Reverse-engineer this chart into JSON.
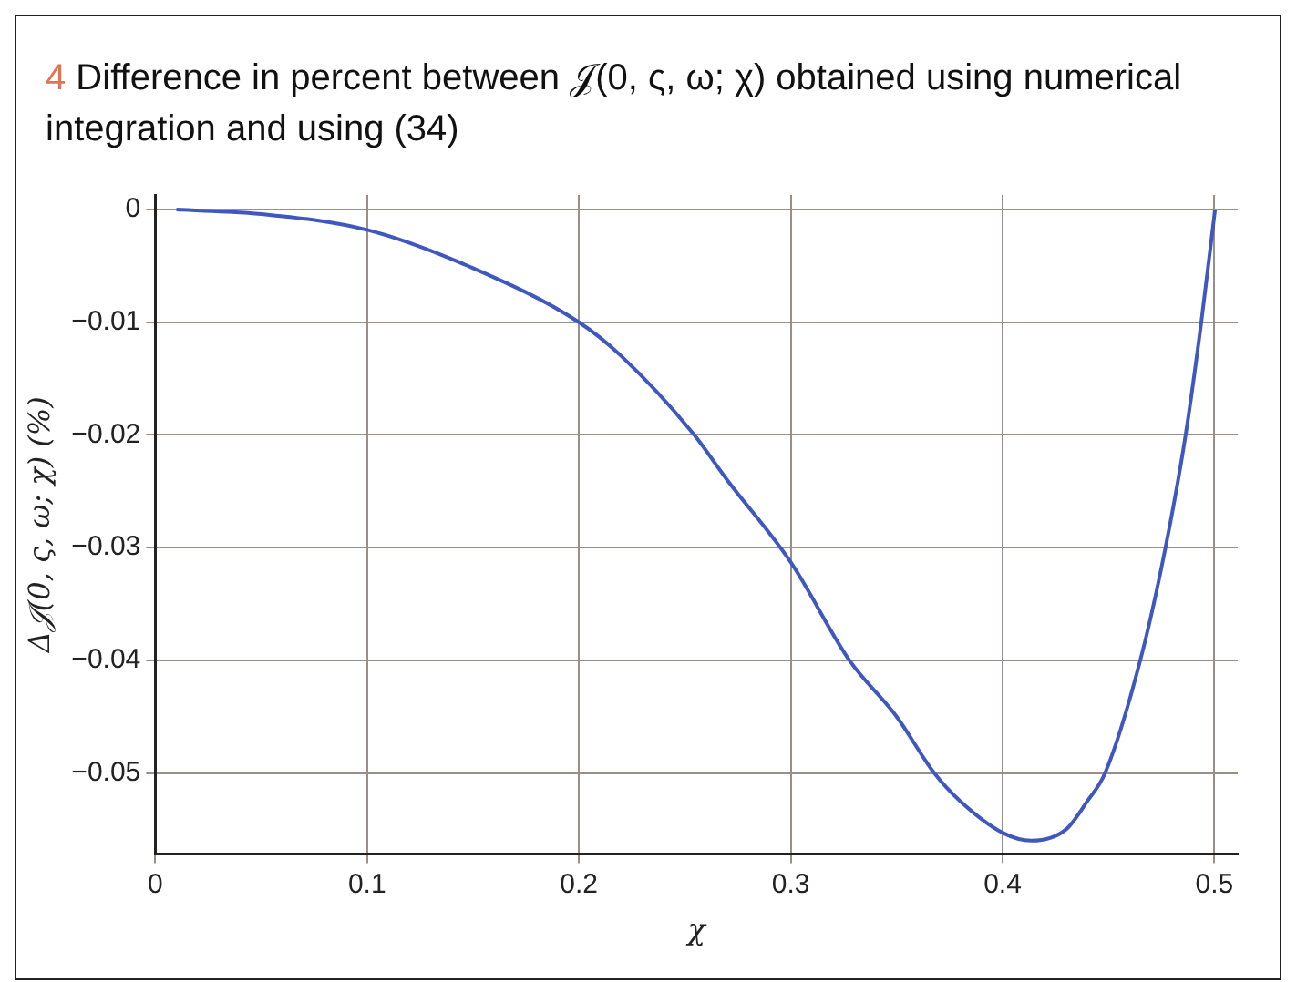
{
  "chart_data": {
    "type": "line",
    "title": "4  Difference in percent between 𝒥(0, ς, ω; χ) obtained using numerical integration and using (34)",
    "xlabel": "χ",
    "ylabel": "Δ𝒥(0, ς, ω; χ) (%)",
    "series": [
      {
        "color": "#3f58c0",
        "x": [
          0.01,
          0.05,
          0.1,
          0.15,
          0.2,
          0.22,
          0.2536,
          0.27,
          0.3,
          0.3277,
          0.35,
          0.3677,
          0.38,
          0.4,
          0.4137,
          0.43,
          0.44,
          0.4484,
          0.465,
          0.4769,
          0.4864,
          0.4938,
          0.5003
        ],
        "values": [
          0,
          -0.0004,
          -0.0018,
          -0.0052,
          -0.01,
          -0.013,
          -0.0198,
          -0.024,
          -0.0313,
          -0.04,
          -0.045,
          -0.05,
          -0.0525,
          -0.0553,
          -0.056,
          -0.055,
          -0.0525,
          -0.05,
          -0.04,
          -0.03,
          -0.02,
          -0.01,
          0
        ]
      }
    ],
    "xlim": [
      0,
      0.511
    ],
    "ylim": [
      -0.0572,
      0.0013
    ],
    "xticks": [
      0,
      0.1,
      0.2,
      0.3,
      0.4,
      0.5
    ],
    "yticks": [
      0,
      {
        "value": -0.01,
        "label": "−0.01"
      },
      {
        "value": -0.02,
        "label": "−0.02"
      },
      {
        "value": -0.03,
        "label": "−0.03"
      },
      {
        "value": -0.04,
        "label": "−0.04"
      },
      {
        "value": -0.05,
        "label": "−0.05"
      }
    ],
    "grid": true,
    "marker": "none",
    "line_style": "solid",
    "legend": false
  }
}
